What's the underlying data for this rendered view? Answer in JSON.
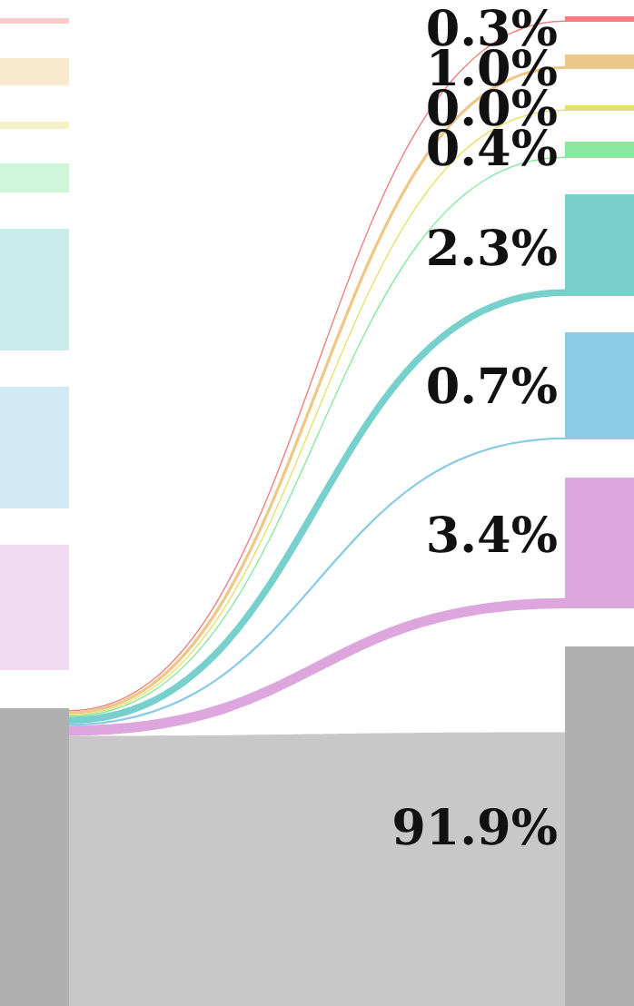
{
  "chart_data": {
    "type": "other",
    "categories": [
      null,
      null,
      null,
      null,
      null,
      null,
      null,
      null
    ],
    "values": [
      0.3,
      1.0,
      0.0,
      0.4,
      2.3,
      0.7,
      3.4,
      91.9
    ],
    "colors": [
      "#f08080",
      "#eec888",
      "#e6e070",
      "#88e8a0",
      "#78d0cc",
      "#8ccbe6",
      "#dda6dc",
      "#b0b0b0"
    ],
    "value_labels": [
      "0.3%",
      "1.0%",
      "0.0%",
      "0.4%",
      "2.3%",
      "0.7%",
      "3.4%",
      "91.9%"
    ]
  }
}
